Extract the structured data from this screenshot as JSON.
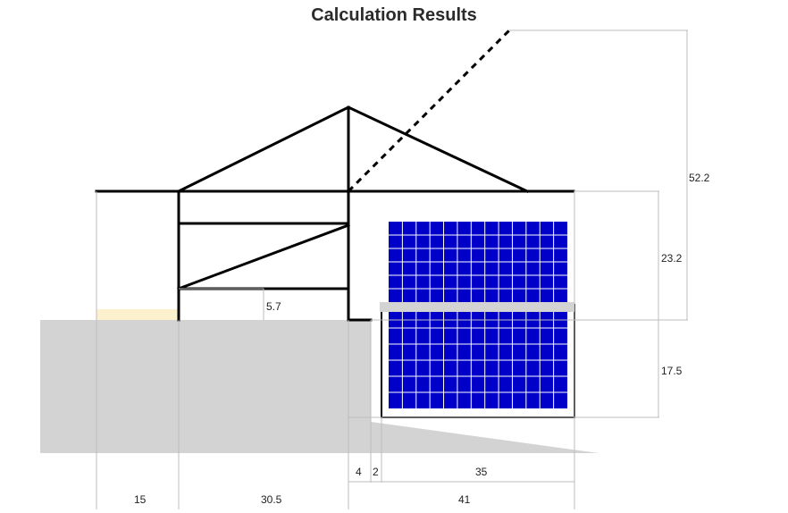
{
  "title": "Calculation Results",
  "colors": {
    "ground": "#d3d3d3",
    "panel_fill": "#0000c8",
    "panel_grid": "#ffffff",
    "highlight": "#fdf0cc",
    "structure": "#000000",
    "dimension_line": "#bdbdbd"
  },
  "dimensions": {
    "total_height": "52.2",
    "upper_height": "23.2",
    "lower_height": "17.5",
    "ledge_height": "5.7",
    "offset_a": "4",
    "offset_b": "2",
    "panel_width": "35",
    "left_width": "15",
    "middle_width": "30.5",
    "right_width": "41"
  },
  "panels": {
    "upper_rows": 6,
    "lower_rows": 6,
    "columns": 13
  }
}
